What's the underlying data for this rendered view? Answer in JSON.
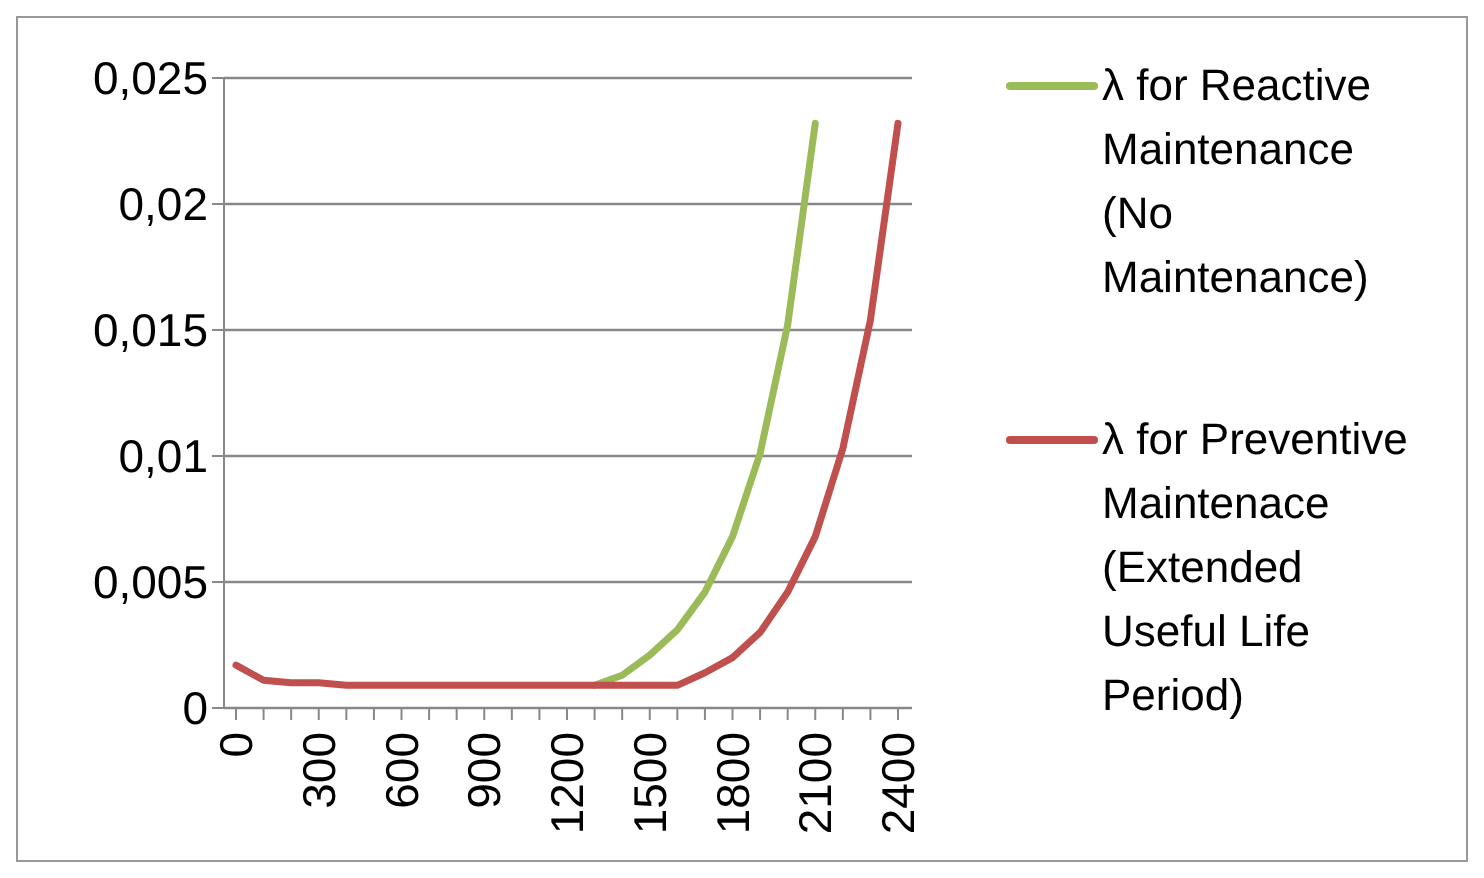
{
  "chart_data": {
    "type": "line",
    "categories": [
      "0",
      null,
      null,
      "300",
      null,
      null,
      "600",
      null,
      null,
      "900",
      null,
      null,
      "1200",
      null,
      null,
      "1500",
      null,
      null,
      "1800",
      null,
      null,
      "2100",
      null,
      null,
      "2400"
    ],
    "series": [
      {
        "name": "λ for Reactive Maintenance (No Maintenance)",
        "color": "#9bbb59",
        "values": [
          null,
          null,
          null,
          null,
          null,
          null,
          null,
          null,
          null,
          null,
          null,
          null,
          null,
          0.0009,
          0.0013,
          0.0021,
          0.0031,
          0.0046,
          0.0068,
          0.0101,
          0.0152,
          0.0232,
          null,
          null,
          null
        ]
      },
      {
        "name": "λ for Preventive Maintenace (Extended Useful Life Period)",
        "color": "#c0504d",
        "values": [
          0.0017,
          0.0011,
          0.001,
          0.001,
          0.0009,
          0.0009,
          0.0009,
          0.0009,
          0.0009,
          0.0009,
          0.0009,
          0.0009,
          0.0009,
          0.0009,
          0.0009,
          0.0009,
          0.0009,
          0.0014,
          0.002,
          0.003,
          0.0046,
          0.0068,
          0.0103,
          0.0154,
          0.0232
        ]
      }
    ],
    "ylim": [
      0,
      0.025
    ],
    "yticks": [
      {
        "value": 0,
        "label": "0"
      },
      {
        "value": 0.005,
        "label": "0,005"
      },
      {
        "value": 0.01,
        "label": "0,01"
      },
      {
        "value": 0.015,
        "label": "0,015"
      },
      {
        "value": 0.02,
        "label": "0,02"
      },
      {
        "value": 0.025,
        "label": "0,025"
      }
    ],
    "grid": "y",
    "legend": "right",
    "marker": "none",
    "line_style": "solid"
  }
}
